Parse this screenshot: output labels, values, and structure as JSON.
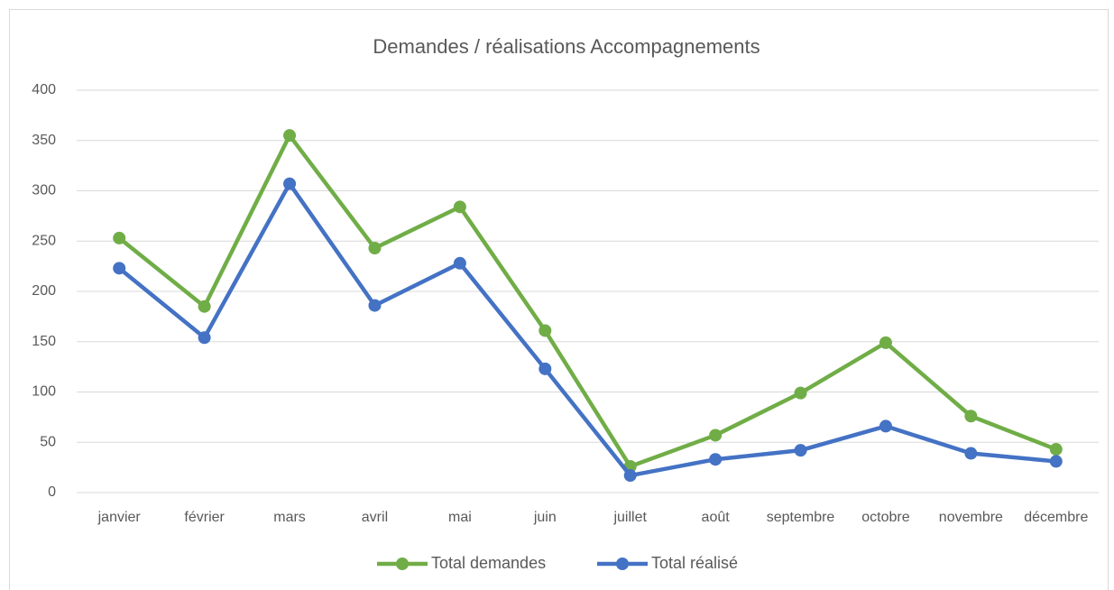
{
  "chart_data": {
    "type": "line",
    "title": "Demandes / réalisations Accompagnements",
    "categories": [
      "janvier",
      "février",
      "mars",
      "avril",
      "mai",
      "juin",
      "juillet",
      "août",
      "septembre",
      "octobre",
      "novembre",
      "décembre"
    ],
    "series": [
      {
        "name": "Total demandes",
        "color": "#70ad47",
        "values": [
          253,
          185,
          355,
          243,
          284,
          161,
          26,
          57,
          99,
          149,
          76,
          43
        ]
      },
      {
        "name": "Total réalisé",
        "color": "#4472c4",
        "values": [
          223,
          154,
          307,
          186,
          228,
          123,
          17,
          33,
          42,
          66,
          39,
          31
        ]
      }
    ],
    "ylim": [
      0,
      400
    ],
    "yticks": [
      0,
      50,
      100,
      150,
      200,
      250,
      300,
      350,
      400
    ],
    "grid": true,
    "legend": "bottom"
  }
}
